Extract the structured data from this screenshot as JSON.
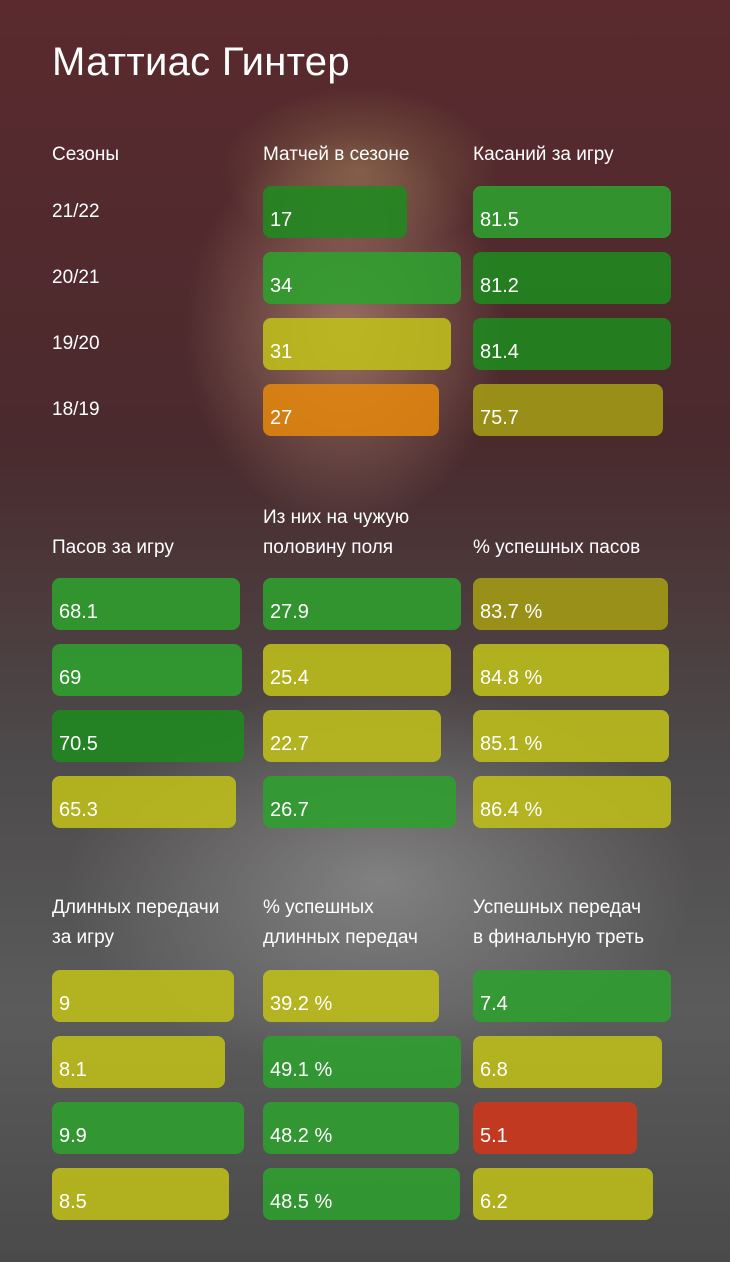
{
  "title": "Маттиас Гинтер",
  "chart_data": {
    "type": "table",
    "seasons_header": "Сезоны",
    "seasons": [
      "21/22",
      "20/21",
      "19/20",
      "18/19"
    ],
    "color_scale": {
      "dark_green": "#1f8a1f",
      "green": "#2ea12e",
      "yellow": "#bfbf1a",
      "olive": "#a49c16",
      "orange": "#e2860e",
      "red": "#d0361a"
    },
    "metrics": [
      {
        "label": "Матчей в сезоне",
        "max": 34,
        "values": [
          17,
          34,
          31,
          27
        ],
        "display": [
          "17",
          "34",
          "31",
          "27"
        ],
        "colors": [
          "dark_green",
          "green",
          "yellow",
          "orange"
        ]
      },
      {
        "label": "Касаний за игру",
        "max": 81.5,
        "values": [
          81.5,
          81.2,
          81.4,
          75.7
        ],
        "display": [
          "81.5",
          "81.2",
          "81.4",
          "75.7"
        ],
        "colors": [
          "green",
          "dark_green",
          "dark_green",
          "olive"
        ]
      },
      {
        "label": "Пасов за игру",
        "max": 70.5,
        "values": [
          68.1,
          69,
          70.5,
          65.3
        ],
        "display": [
          "68.1",
          "69",
          "70.5",
          "65.3"
        ],
        "colors": [
          "green",
          "green",
          "dark_green",
          "yellow"
        ]
      },
      {
        "label": "Из них на чужую\nполовину поля",
        "max": 27.9,
        "values": [
          27.9,
          25.4,
          22.7,
          26.7
        ],
        "display": [
          "27.9",
          "25.4",
          "22.7",
          "26.7"
        ],
        "colors": [
          "green",
          "yellow",
          "yellow",
          "green"
        ]
      },
      {
        "label": "% успешных пасов",
        "max": 86.4,
        "values": [
          83.7,
          84.8,
          85.1,
          86.4
        ],
        "display": [
          "83.7 %",
          "84.8 %",
          "85.1 %",
          "86.4 %"
        ],
        "colors": [
          "olive",
          "yellow",
          "yellow",
          "yellow"
        ]
      },
      {
        "label": "Длинных передачи\nза игру",
        "max": 9.9,
        "values": [
          9,
          8.1,
          9.9,
          8.5
        ],
        "display": [
          "9",
          "8.1",
          "9.9",
          "8.5"
        ],
        "colors": [
          "yellow",
          "yellow",
          "green",
          "yellow"
        ]
      },
      {
        "label": "% успешных\nдлинных передач",
        "max": 49.1,
        "values": [
          39.2,
          49.1,
          48.2,
          48.5
        ],
        "display": [
          "39.2 %",
          "49.1 %",
          "48.2 %",
          "48.5 %"
        ],
        "colors": [
          "yellow",
          "green",
          "green",
          "green"
        ]
      },
      {
        "label": "Успешных передач\nв финальную треть",
        "max": 7.4,
        "values": [
          7.4,
          6.8,
          5.1,
          6.2
        ],
        "display": [
          "7.4",
          "6.8",
          "5.1",
          "6.2"
        ],
        "colors": [
          "green",
          "yellow",
          "red",
          "yellow"
        ]
      }
    ]
  }
}
